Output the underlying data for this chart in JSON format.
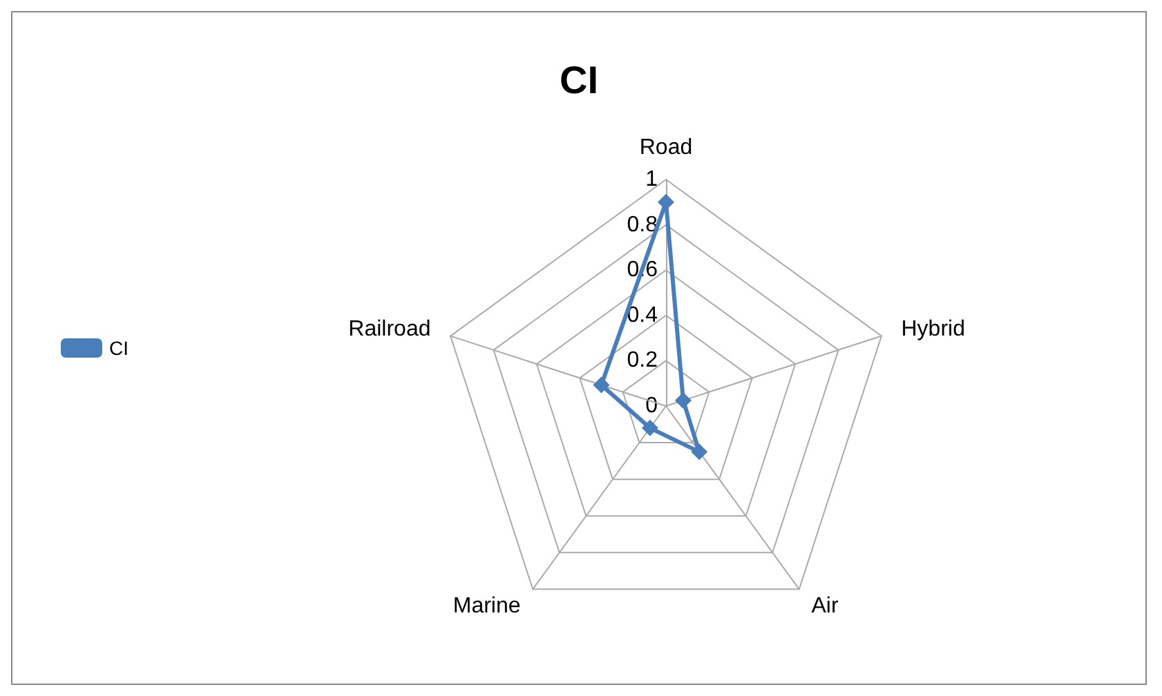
{
  "chart_data": {
    "type": "radar",
    "title": "CI",
    "categories": [
      "Road",
      "Hybrid",
      "Air",
      "Marine",
      "Railroad"
    ],
    "series": [
      {
        "name": "CI",
        "color": "#4a7ebb",
        "values": [
          0.9,
          0.08,
          0.25,
          0.12,
          0.3
        ]
      }
    ],
    "ylim": [
      0,
      1
    ],
    "yticks": [
      0,
      0.2,
      0.4,
      0.6,
      0.8,
      1
    ],
    "grid": true,
    "legend": "left",
    "marker": "diamond",
    "line_style": "solid"
  }
}
